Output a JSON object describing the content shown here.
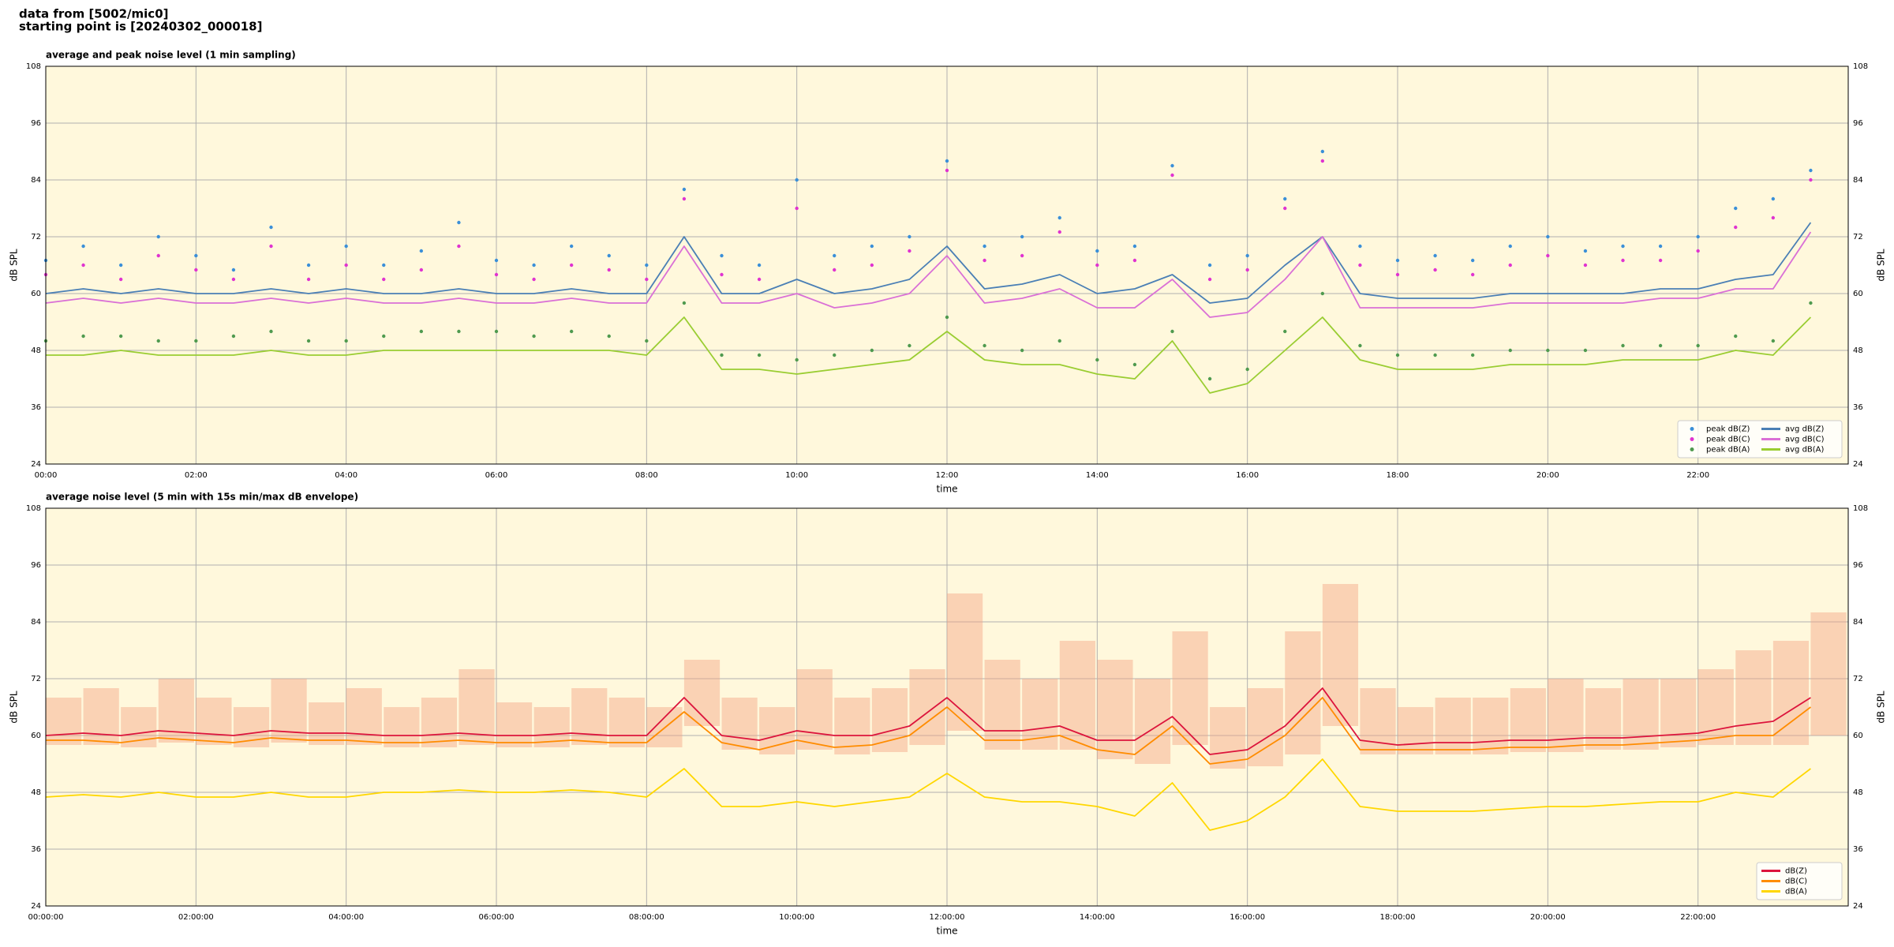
{
  "header": {
    "lines": [
      "data from [5002/mic0]",
      "starting point is [20240302_000018]"
    ]
  },
  "chart_data": [
    {
      "type": "line",
      "title": "average and peak noise level (1 min sampling)",
      "xlabel": "time",
      "ylabel": "dB SPL",
      "background": "#fff8dc",
      "grid": true,
      "legend": "lower right",
      "xlim": [
        0,
        24
      ],
      "ylim": [
        24,
        108
      ],
      "yticks": [
        24,
        36,
        48,
        60,
        72,
        84,
        96,
        108
      ],
      "xticks": [
        {
          "value": 0,
          "label": "00:00"
        },
        {
          "value": 2,
          "label": "02:00"
        },
        {
          "value": 4,
          "label": "04:00"
        },
        {
          "value": 6,
          "label": "06:00"
        },
        {
          "value": 8,
          "label": "08:00"
        },
        {
          "value": 10,
          "label": "10:00"
        },
        {
          "value": 12,
          "label": "12:00"
        },
        {
          "value": 14,
          "label": "14:00"
        },
        {
          "value": 16,
          "label": "16:00"
        },
        {
          "value": 18,
          "label": "18:00"
        },
        {
          "value": 20,
          "label": "20:00"
        },
        {
          "value": 22,
          "label": "22:00"
        }
      ],
      "x": [
        0,
        0.5,
        1,
        1.5,
        2,
        2.5,
        3,
        3.5,
        4,
        4.5,
        5,
        5.5,
        6,
        6.5,
        7,
        7.5,
        8,
        8.5,
        9,
        9.5,
        10,
        10.5,
        11,
        11.5,
        12,
        12.5,
        13,
        13.5,
        14,
        14.5,
        15,
        15.5,
        16,
        16.5,
        17,
        17.5,
        18,
        18.5,
        19,
        19.5,
        20,
        20.5,
        21,
        21.5,
        22,
        22.5,
        23,
        23.5
      ],
      "series": [
        {
          "name": "peak dB(Z)",
          "type": "scatter",
          "color": "#3a8fd8",
          "values": [
            67,
            70,
            66,
            72,
            68,
            65,
            74,
            66,
            70,
            66,
            69,
            75,
            67,
            66,
            70,
            68,
            66,
            82,
            68,
            66,
            84,
            68,
            70,
            72,
            88,
            70,
            72,
            76,
            69,
            70,
            87,
            66,
            68,
            80,
            90,
            70,
            67,
            68,
            67,
            70,
            72,
            69,
            70,
            70,
            72,
            78,
            80,
            86
          ]
        },
        {
          "name": "peak dB(C)",
          "type": "scatter",
          "color": "#e033d0",
          "values": [
            64,
            66,
            63,
            68,
            65,
            63,
            70,
            63,
            66,
            63,
            65,
            70,
            64,
            63,
            66,
            65,
            63,
            80,
            64,
            63,
            78,
            65,
            66,
            69,
            86,
            67,
            68,
            73,
            66,
            67,
            85,
            63,
            65,
            78,
            88,
            66,
            64,
            65,
            64,
            66,
            68,
            66,
            67,
            67,
            69,
            74,
            76,
            84
          ]
        },
        {
          "name": "peak dB(A)",
          "type": "scatter",
          "color": "#4f9a4f",
          "values": [
            50,
            51,
            51,
            50,
            50,
            51,
            52,
            50,
            50,
            51,
            52,
            52,
            52,
            51,
            52,
            51,
            50,
            58,
            47,
            47,
            46,
            47,
            48,
            49,
            55,
            49,
            48,
            50,
            46,
            45,
            52,
            42,
            44,
            52,
            60,
            49,
            47,
            47,
            47,
            48,
            48,
            48,
            49,
            49,
            49,
            51,
            50,
            58
          ]
        },
        {
          "name": "avg dB(Z)",
          "type": "line",
          "color": "#4a7fb5",
          "values": [
            60,
            61,
            60,
            61,
            60,
            60,
            61,
            60,
            61,
            60,
            60,
            61,
            60,
            60,
            61,
            60,
            60,
            72,
            60,
            60,
            63,
            60,
            61,
            63,
            70,
            61,
            62,
            64,
            60,
            61,
            64,
            58,
            59,
            66,
            72,
            60,
            59,
            59,
            59,
            60,
            60,
            60,
            60,
            61,
            61,
            63,
            64,
            75
          ]
        },
        {
          "name": "avg dB(C)",
          "type": "line",
          "color": "#da70d6",
          "values": [
            58,
            59,
            58,
            59,
            58,
            58,
            59,
            58,
            59,
            58,
            58,
            59,
            58,
            58,
            59,
            58,
            58,
            70,
            58,
            58,
            60,
            57,
            58,
            60,
            68,
            58,
            59,
            61,
            57,
            57,
            63,
            55,
            56,
            63,
            72,
            57,
            57,
            57,
            57,
            58,
            58,
            58,
            58,
            59,
            59,
            61,
            61,
            73
          ]
        },
        {
          "name": "avg dB(A)",
          "type": "line",
          "color": "#9acd32",
          "values": [
            47,
            47,
            48,
            47,
            47,
            47,
            48,
            47,
            47,
            48,
            48,
            48,
            48,
            48,
            48,
            48,
            47,
            55,
            44,
            44,
            43,
            44,
            45,
            46,
            52,
            46,
            45,
            45,
            43,
            42,
            50,
            39,
            41,
            48,
            55,
            46,
            44,
            44,
            44,
            45,
            45,
            45,
            46,
            46,
            46,
            48,
            47,
            55
          ]
        }
      ]
    },
    {
      "type": "line",
      "title": "average noise level (5 min with 15s min/max dB envelope)",
      "xlabel": "time",
      "ylabel": "dB SPL",
      "background": "#fff8dc",
      "grid": true,
      "legend": "lower right",
      "xlim": [
        0,
        24
      ],
      "ylim": [
        24,
        108
      ],
      "yticks": [
        24,
        36,
        48,
        60,
        72,
        84,
        96,
        108
      ],
      "xticks": [
        {
          "value": 0,
          "label": "00:00:00"
        },
        {
          "value": 2,
          "label": "02:00:00"
        },
        {
          "value": 4,
          "label": "04:00:00"
        },
        {
          "value": 6,
          "label": "06:00:00"
        },
        {
          "value": 8,
          "label": "08:00:00"
        },
        {
          "value": 10,
          "label": "10:00:00"
        },
        {
          "value": 12,
          "label": "12:00:00"
        },
        {
          "value": 14,
          "label": "14:00:00"
        },
        {
          "value": 16,
          "label": "16:00:00"
        },
        {
          "value": 18,
          "label": "18:00:00"
        },
        {
          "value": 20,
          "label": "20:00:00"
        },
        {
          "value": 22,
          "label": "22:00:00"
        }
      ],
      "x": [
        0,
        0.5,
        1,
        1.5,
        2,
        2.5,
        3,
        3.5,
        4,
        4.5,
        5,
        5.5,
        6,
        6.5,
        7,
        7.5,
        8,
        8.5,
        9,
        9.5,
        10,
        10.5,
        11,
        11.5,
        12,
        12.5,
        13,
        13.5,
        14,
        14.5,
        15,
        15.5,
        16,
        16.5,
        17,
        17.5,
        18,
        18.5,
        19,
        19.5,
        20,
        20.5,
        21,
        21.5,
        22,
        22.5,
        23,
        23.5
      ],
      "envelope": {
        "color": "#f4a582",
        "min": [
          58,
          58,
          57.5,
          58.5,
          58,
          57.5,
          58.5,
          58,
          58,
          57.5,
          57.5,
          58,
          57.5,
          57.5,
          58,
          57.5,
          57.5,
          62,
          57,
          56,
          57,
          56,
          56.5,
          58,
          61,
          57,
          57,
          57,
          55,
          54,
          58,
          53,
          53.5,
          56,
          62,
          56,
          56,
          56,
          56,
          56.5,
          56.5,
          57,
          57,
          57.5,
          58,
          58,
          58,
          60
        ],
        "max": [
          68,
          70,
          66,
          72,
          68,
          66,
          72,
          67,
          70,
          66,
          68,
          74,
          67,
          66,
          70,
          68,
          66,
          76,
          68,
          66,
          74,
          68,
          70,
          74,
          90,
          76,
          72,
          80,
          76,
          72,
          82,
          66,
          70,
          82,
          92,
          70,
          66,
          68,
          68,
          70,
          72,
          70,
          72,
          72,
          74,
          78,
          80,
          86
        ]
      },
      "series": [
        {
          "name": "dB(Z)",
          "type": "line",
          "color": "#dc143c",
          "values": [
            60,
            60.5,
            60,
            61,
            60.5,
            60,
            61,
            60.5,
            60.5,
            60,
            60,
            60.5,
            60,
            60,
            60.5,
            60,
            60,
            68,
            60,
            59,
            61,
            60,
            60,
            62,
            68,
            61,
            61,
            62,
            59,
            59,
            64,
            56,
            57,
            62,
            70,
            59,
            58,
            58.5,
            58.5,
            59,
            59,
            59.5,
            59.5,
            60,
            60.5,
            62,
            63,
            68
          ]
        },
        {
          "name": "dB(C)",
          "type": "line",
          "color": "#ff8c00",
          "values": [
            59,
            59,
            58.5,
            59.5,
            59,
            58.5,
            59.5,
            59,
            59,
            58.5,
            58.5,
            59,
            58.5,
            58.5,
            59,
            58.5,
            58.5,
            65,
            58.5,
            57,
            59,
            57.5,
            58,
            60,
            66,
            59,
            59,
            60,
            57,
            56,
            62,
            54,
            55,
            60,
            68,
            57,
            57,
            57,
            57,
            57.5,
            57.5,
            58,
            58,
            58.5,
            59,
            60,
            60,
            66
          ]
        },
        {
          "name": "dB(A)",
          "type": "line",
          "color": "#ffd700",
          "values": [
            47,
            47.5,
            47,
            48,
            47,
            47,
            48,
            47,
            47,
            48,
            48,
            48.5,
            48,
            48,
            48.5,
            48,
            47,
            53,
            45,
            45,
            46,
            45,
            46,
            47,
            52,
            47,
            46,
            46,
            45,
            43,
            50,
            40,
            42,
            47,
            55,
            45,
            44,
            44,
            44,
            44.5,
            45,
            45,
            45.5,
            46,
            46,
            48,
            47,
            53
          ]
        }
      ]
    }
  ]
}
